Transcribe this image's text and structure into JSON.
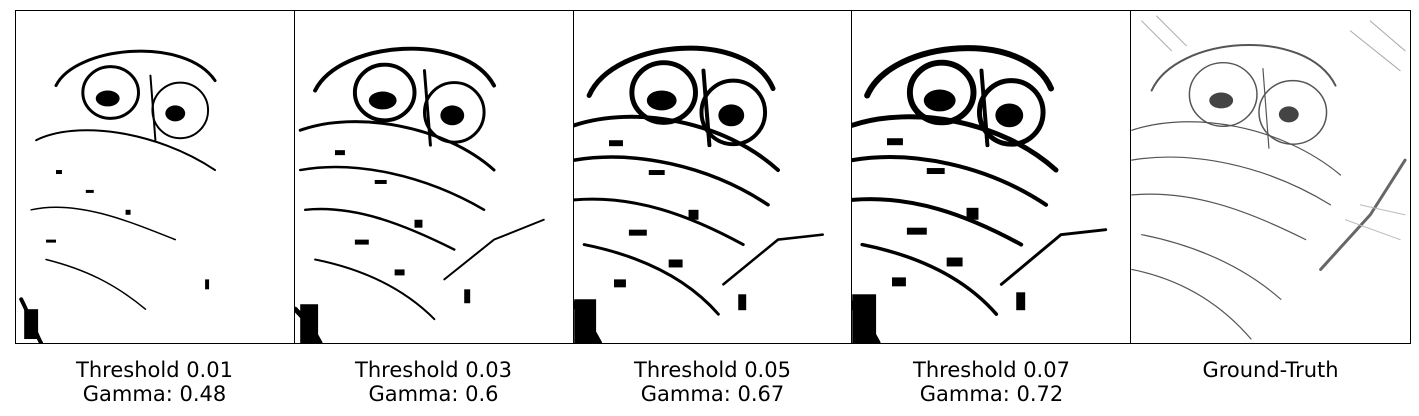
{
  "panels": [
    {
      "title": "Threshold 0.01",
      "gamma": "Gamma: 0.48",
      "density": 0.35
    },
    {
      "title": "Threshold 0.03",
      "gamma": "Gamma: 0.6",
      "density": 0.6
    },
    {
      "title": "Threshold 0.05",
      "gamma": "Gamma: 0.67",
      "density": 0.8
    },
    {
      "title": "Threshold 0.07",
      "gamma": "Gamma: 0.72",
      "density": 0.9
    },
    {
      "title": "Ground-Truth",
      "gamma": "",
      "density": 1.0
    }
  ],
  "colors": {
    "ink": "#000000",
    "paper": "#ffffff",
    "sketch": "#555555"
  }
}
